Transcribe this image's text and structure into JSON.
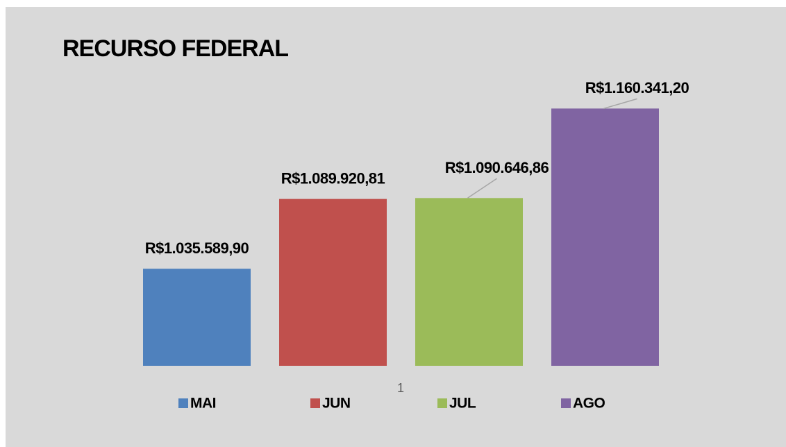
{
  "chart_data": {
    "type": "bar",
    "title": "RECURSO FEDERAL",
    "categories": [
      "1"
    ],
    "series": [
      {
        "name": "MAI",
        "color": "#4f81bd",
        "values": [
          1035589.9
        ],
        "value_labels": [
          "R$1.035.589,90"
        ]
      },
      {
        "name": "JUN",
        "color": "#c0504d",
        "values": [
          1089920.81
        ],
        "value_labels": [
          "R$1.089.920,81"
        ]
      },
      {
        "name": "JUL",
        "color": "#9bbb59",
        "values": [
          1090646.86
        ],
        "value_labels": [
          "R$1.090.646,86"
        ]
      },
      {
        "name": "AGO",
        "color": "#8064a2",
        "values": [
          1160341.2
        ],
        "value_labels": [
          "R$1.160.341,20"
        ]
      }
    ],
    "ylim": [
      960000,
      1180000
    ],
    "grid": false,
    "legend": "bottom"
  }
}
